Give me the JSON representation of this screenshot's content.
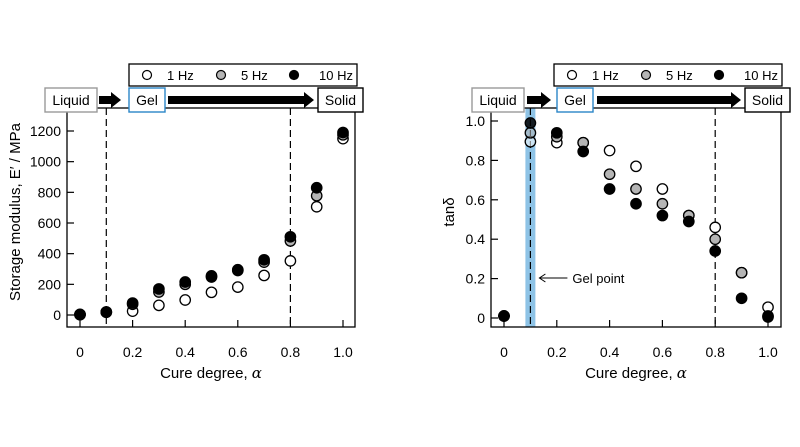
{
  "chart_data": [
    {
      "type": "scatter",
      "id": "storage-modulus",
      "title": "",
      "xlabel": "Cure degree, α",
      "ylabel": "Storage modulus, E′ / MPa",
      "xlim": [
        0,
        1.0
      ],
      "ylim": [
        0,
        1200
      ],
      "xticks": [
        0,
        0.2,
        0.4,
        0.6,
        0.8,
        1.0
      ],
      "xtick_labels": [
        "0",
        "0.2",
        "0.4",
        "0.6",
        "0.8",
        "1.0"
      ],
      "yticks": [
        0,
        200,
        400,
        600,
        800,
        1000,
        1200
      ],
      "ytick_labels": [
        "0",
        "200",
        "400",
        "600",
        "800",
        "1000",
        "1200"
      ],
      "grid": false,
      "legend_position": "top",
      "x": [
        0,
        0.1,
        0.2,
        0.3,
        0.4,
        0.5,
        0.6,
        0.7,
        0.8,
        0.9,
        1.0
      ],
      "series": [
        {
          "name": "1 Hz",
          "marker": "open",
          "values": [
            2,
            18,
            25,
            63,
            98,
            148,
            182,
            258,
            353,
            706,
            1150
          ]
        },
        {
          "name": "5 Hz",
          "marker": "gray",
          "values": [
            3,
            19,
            70,
            150,
            200,
            248,
            290,
            345,
            483,
            778,
            1175
          ]
        },
        {
          "name": "10 Hz",
          "marker": "filled",
          "values": [
            4,
            20,
            78,
            170,
            215,
            255,
            295,
            360,
            510,
            830,
            1190
          ]
        }
      ],
      "vlines": [
        0.1,
        0.8
      ],
      "phases": [
        "Liquid",
        "Gel",
        "Solid"
      ]
    },
    {
      "type": "scatter",
      "id": "tan-delta",
      "title": "",
      "xlabel": "Cure degree, α",
      "ylabel": "tanδ",
      "xlim": [
        0,
        1.0
      ],
      "ylim": [
        0,
        1.0
      ],
      "xticks": [
        0,
        0.2,
        0.4,
        0.6,
        0.8,
        1.0
      ],
      "xtick_labels": [
        "0",
        "0.2",
        "0.4",
        "0.6",
        "0.8",
        "1.0"
      ],
      "yticks": [
        0,
        0.2,
        0.4,
        0.6,
        0.8,
        1.0
      ],
      "ytick_labels": [
        "0",
        "0.2",
        "0.4",
        "0.6",
        "0.8",
        "1.0"
      ],
      "grid": false,
      "legend_position": "top",
      "x": [
        0,
        0.1,
        0.2,
        0.3,
        0.4,
        0.5,
        0.6,
        0.7,
        0.8,
        0.9,
        1.0
      ],
      "series": [
        {
          "name": "1 Hz",
          "marker": "open",
          "values": [
            0.01,
            0.895,
            0.89,
            0.89,
            0.85,
            0.77,
            0.655,
            0.52,
            0.46,
            0.23,
            0.055
          ]
        },
        {
          "name": "5 Hz",
          "marker": "gray",
          "values": [
            0.01,
            0.94,
            0.92,
            0.89,
            0.73,
            0.655,
            0.58,
            0.52,
            0.4,
            0.23,
            0.01
          ]
        },
        {
          "name": "10 Hz",
          "marker": "filled",
          "values": [
            0.01,
            0.99,
            0.94,
            0.845,
            0.655,
            0.58,
            0.52,
            0.49,
            0.34,
            0.1,
            0.005
          ]
        }
      ],
      "vlines": [
        0.1,
        0.8
      ],
      "highlight_band": {
        "x": 0.1,
        "color": "#7fb8e0"
      },
      "annotation": "Gel point",
      "phases": [
        "Liquid",
        "Gel",
        "Solid"
      ]
    }
  ],
  "colors": {
    "open_fill": "#ffffff",
    "gray_fill": "#b5b5b5",
    "filled_fill": "#000000",
    "gel_box_border": "#2a86c8",
    "liquid_box_border": "#999999",
    "gel_band": "#8ec3e6"
  }
}
